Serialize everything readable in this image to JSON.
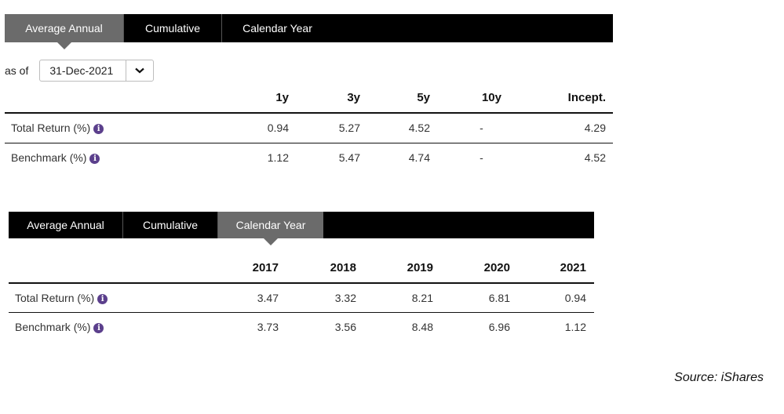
{
  "section1": {
    "tabs": [
      {
        "label": "Average Annual",
        "active": true
      },
      {
        "label": "Cumulative",
        "active": false
      },
      {
        "label": "Calendar Year",
        "active": false
      }
    ],
    "as_of_label": "as of",
    "date_value": "31-Dec-2021",
    "columns": [
      "1y",
      "3y",
      "5y",
      "10y",
      "Incept."
    ],
    "rows": [
      {
        "label": "Total Return (%)",
        "values": [
          "0.94",
          "5.27",
          "4.52",
          "-",
          "4.29"
        ]
      },
      {
        "label": "Benchmark (%)",
        "values": [
          "1.12",
          "5.47",
          "4.74",
          "-",
          "4.52"
        ]
      }
    ]
  },
  "section2": {
    "tabs": [
      {
        "label": "Average Annual",
        "active": false
      },
      {
        "label": "Cumulative",
        "active": false
      },
      {
        "label": "Calendar Year",
        "active": true
      }
    ],
    "columns": [
      "2017",
      "2018",
      "2019",
      "2020",
      "2021"
    ],
    "rows": [
      {
        "label": "Total Return (%)",
        "values": [
          "3.47",
          "3.32",
          "8.21",
          "6.81",
          "0.94"
        ]
      },
      {
        "label": "Benchmark (%)",
        "values": [
          "3.73",
          "3.56",
          "8.48",
          "6.96",
          "1.12"
        ]
      }
    ]
  },
  "info_icon_glyph": "i",
  "source_text": "Source: iShares",
  "colors": {
    "tab_bar": "#000000",
    "active_tab": "#6b6b6b",
    "info_icon": "#5b3f8c"
  }
}
